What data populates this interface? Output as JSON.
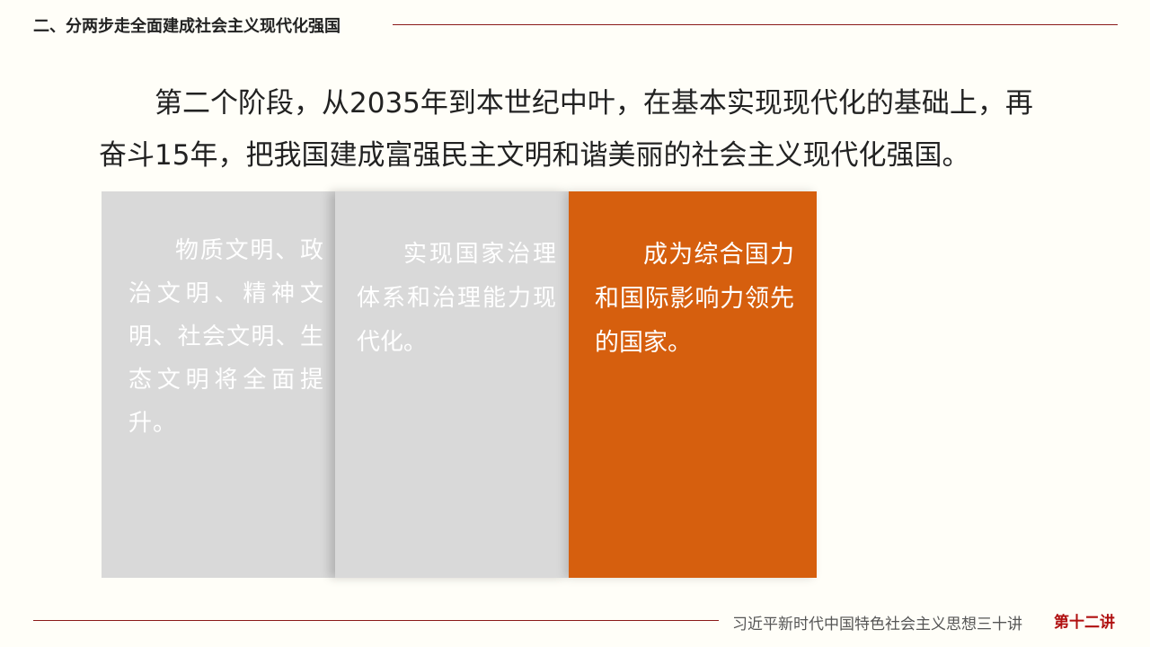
{
  "header": {
    "title": "二、分两步走全面建成社会主义现代化强国"
  },
  "main": {
    "paragraph": "第二个阶段，从2035年到本世纪中叶，在基本实现现代化的基础上，再奋斗15年，把我国建成富强民主文明和谐美丽的社会主义现代化强国。",
    "cards": [
      {
        "text": "物质文明、政治文明、精神文明、社会文明、生态文明将全面提升。",
        "color": "#d9d9d9"
      },
      {
        "text": "实现国家治理体系和治理能力现代化。",
        "color": "#d9d9d9"
      },
      {
        "text": "成为综合国力和国际影响力领先的国家。",
        "color": "#d65f0e"
      }
    ]
  },
  "footer": {
    "series": "习近平新时代中国特色社会主义思想三十讲",
    "lecture": "第十二讲"
  }
}
